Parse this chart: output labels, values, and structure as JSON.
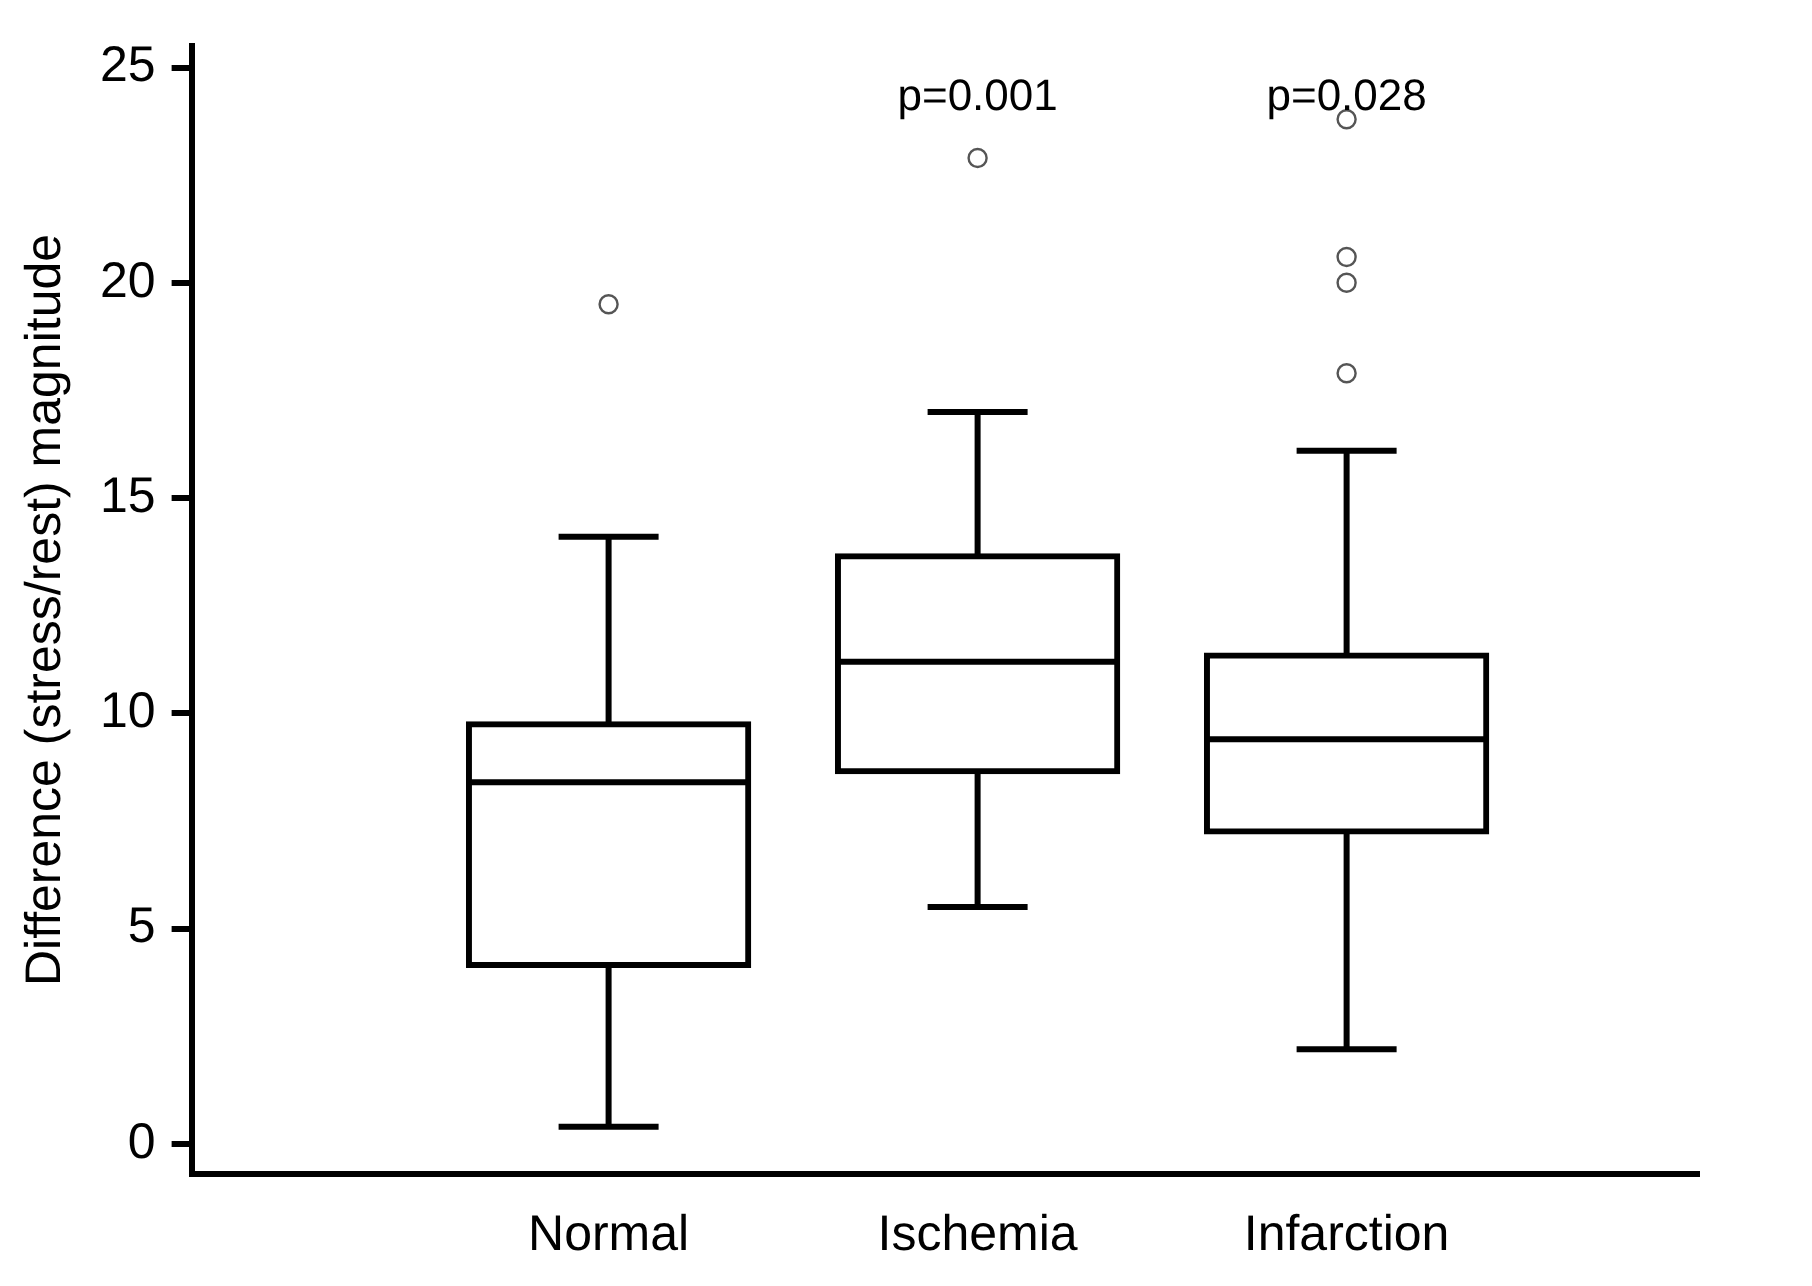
{
  "chart_data": {
    "type": "box",
    "ylabel": "Difference (stress/rest) magnitude",
    "categories": [
      "Normal",
      "Ischemia",
      "Infarction"
    ],
    "boxes": [
      {
        "low": 0.4,
        "q1": 4.1,
        "median": 8.4,
        "q3": 9.8,
        "high": 14.1,
        "outliers": [
          19.5
        ]
      },
      {
        "low": 5.5,
        "q1": 8.6,
        "median": 11.2,
        "q3": 13.7,
        "high": 17.0,
        "outliers": [
          22.9
        ]
      },
      {
        "low": 2.2,
        "q1": 7.2,
        "median": 9.4,
        "q3": 11.4,
        "high": 16.1,
        "outliers": [
          23.8,
          20.6,
          20.0,
          17.9
        ]
      }
    ],
    "color": "#000000",
    "ylim": [
      -0.7,
      25.5
    ],
    "yticks": [
      0,
      5,
      10,
      15,
      20,
      25
    ],
    "grid": false,
    "legend": false,
    "annotations": [
      "p=0.001",
      "p=0.028"
    ]
  }
}
